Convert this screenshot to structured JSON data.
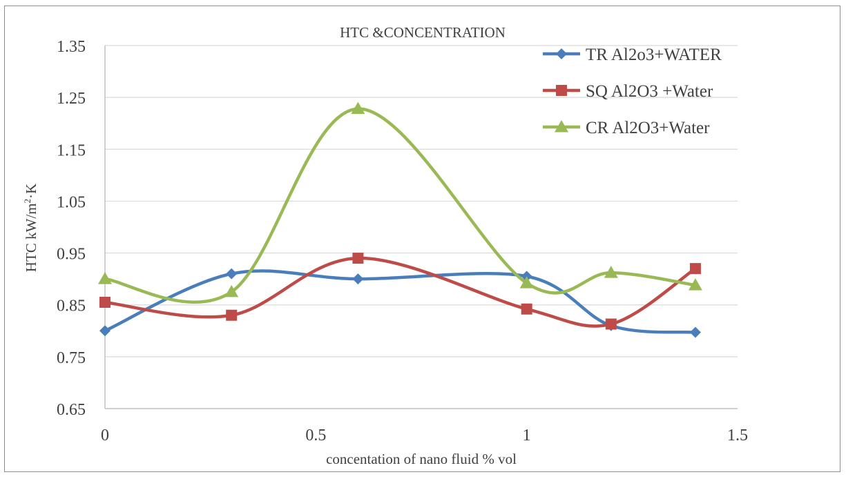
{
  "chart_data": {
    "type": "line",
    "title": "HTC &CONCENTRATION",
    "xlabel": "concentation of nano fluid  % vol",
    "ylabel_main": "HTC  kW/m",
    "ylabel_sup": "2",
    "ylabel_tail": "·K",
    "xlim": [
      0,
      1.5
    ],
    "ylim": [
      0.65,
      1.35
    ],
    "xticks": [
      0,
      0.5,
      1,
      1.5
    ],
    "xtick_labels": [
      "0",
      "0.5",
      "1",
      "1.5"
    ],
    "yticks": [
      0.65,
      0.75,
      0.85,
      0.95,
      1.05,
      1.15,
      1.25,
      1.35
    ],
    "ytick_labels": [
      "0.65",
      "0.75",
      "0.85",
      "0.95",
      "1.05",
      "1.15",
      "1.25",
      "1.35"
    ],
    "grid": "horizontal",
    "legend_position": "top-right",
    "smooth": true,
    "series": [
      {
        "name": "TR  Al2o3+WATER",
        "color": "#4a7ebb",
        "marker": "diamond",
        "x": [
          0,
          0.3,
          0.6,
          1.0,
          1.2,
          1.4
        ],
        "y": [
          0.8,
          0.91,
          0.9,
          0.905,
          0.81,
          0.797
        ]
      },
      {
        "name": "SQ Al2O3 +Water",
        "color": "#be4b48",
        "marker": "square",
        "x": [
          0,
          0.3,
          0.6,
          1.0,
          1.2,
          1.4
        ],
        "y": [
          0.855,
          0.83,
          0.94,
          0.842,
          0.813,
          0.92
        ]
      },
      {
        "name": "CR Al2O3+Water",
        "color": "#98b954",
        "marker": "triangle",
        "x": [
          0,
          0.3,
          0.6,
          1.0,
          1.2,
          1.4
        ],
        "y": [
          0.9,
          0.875,
          1.228,
          0.892,
          0.912,
          0.888
        ]
      }
    ]
  }
}
